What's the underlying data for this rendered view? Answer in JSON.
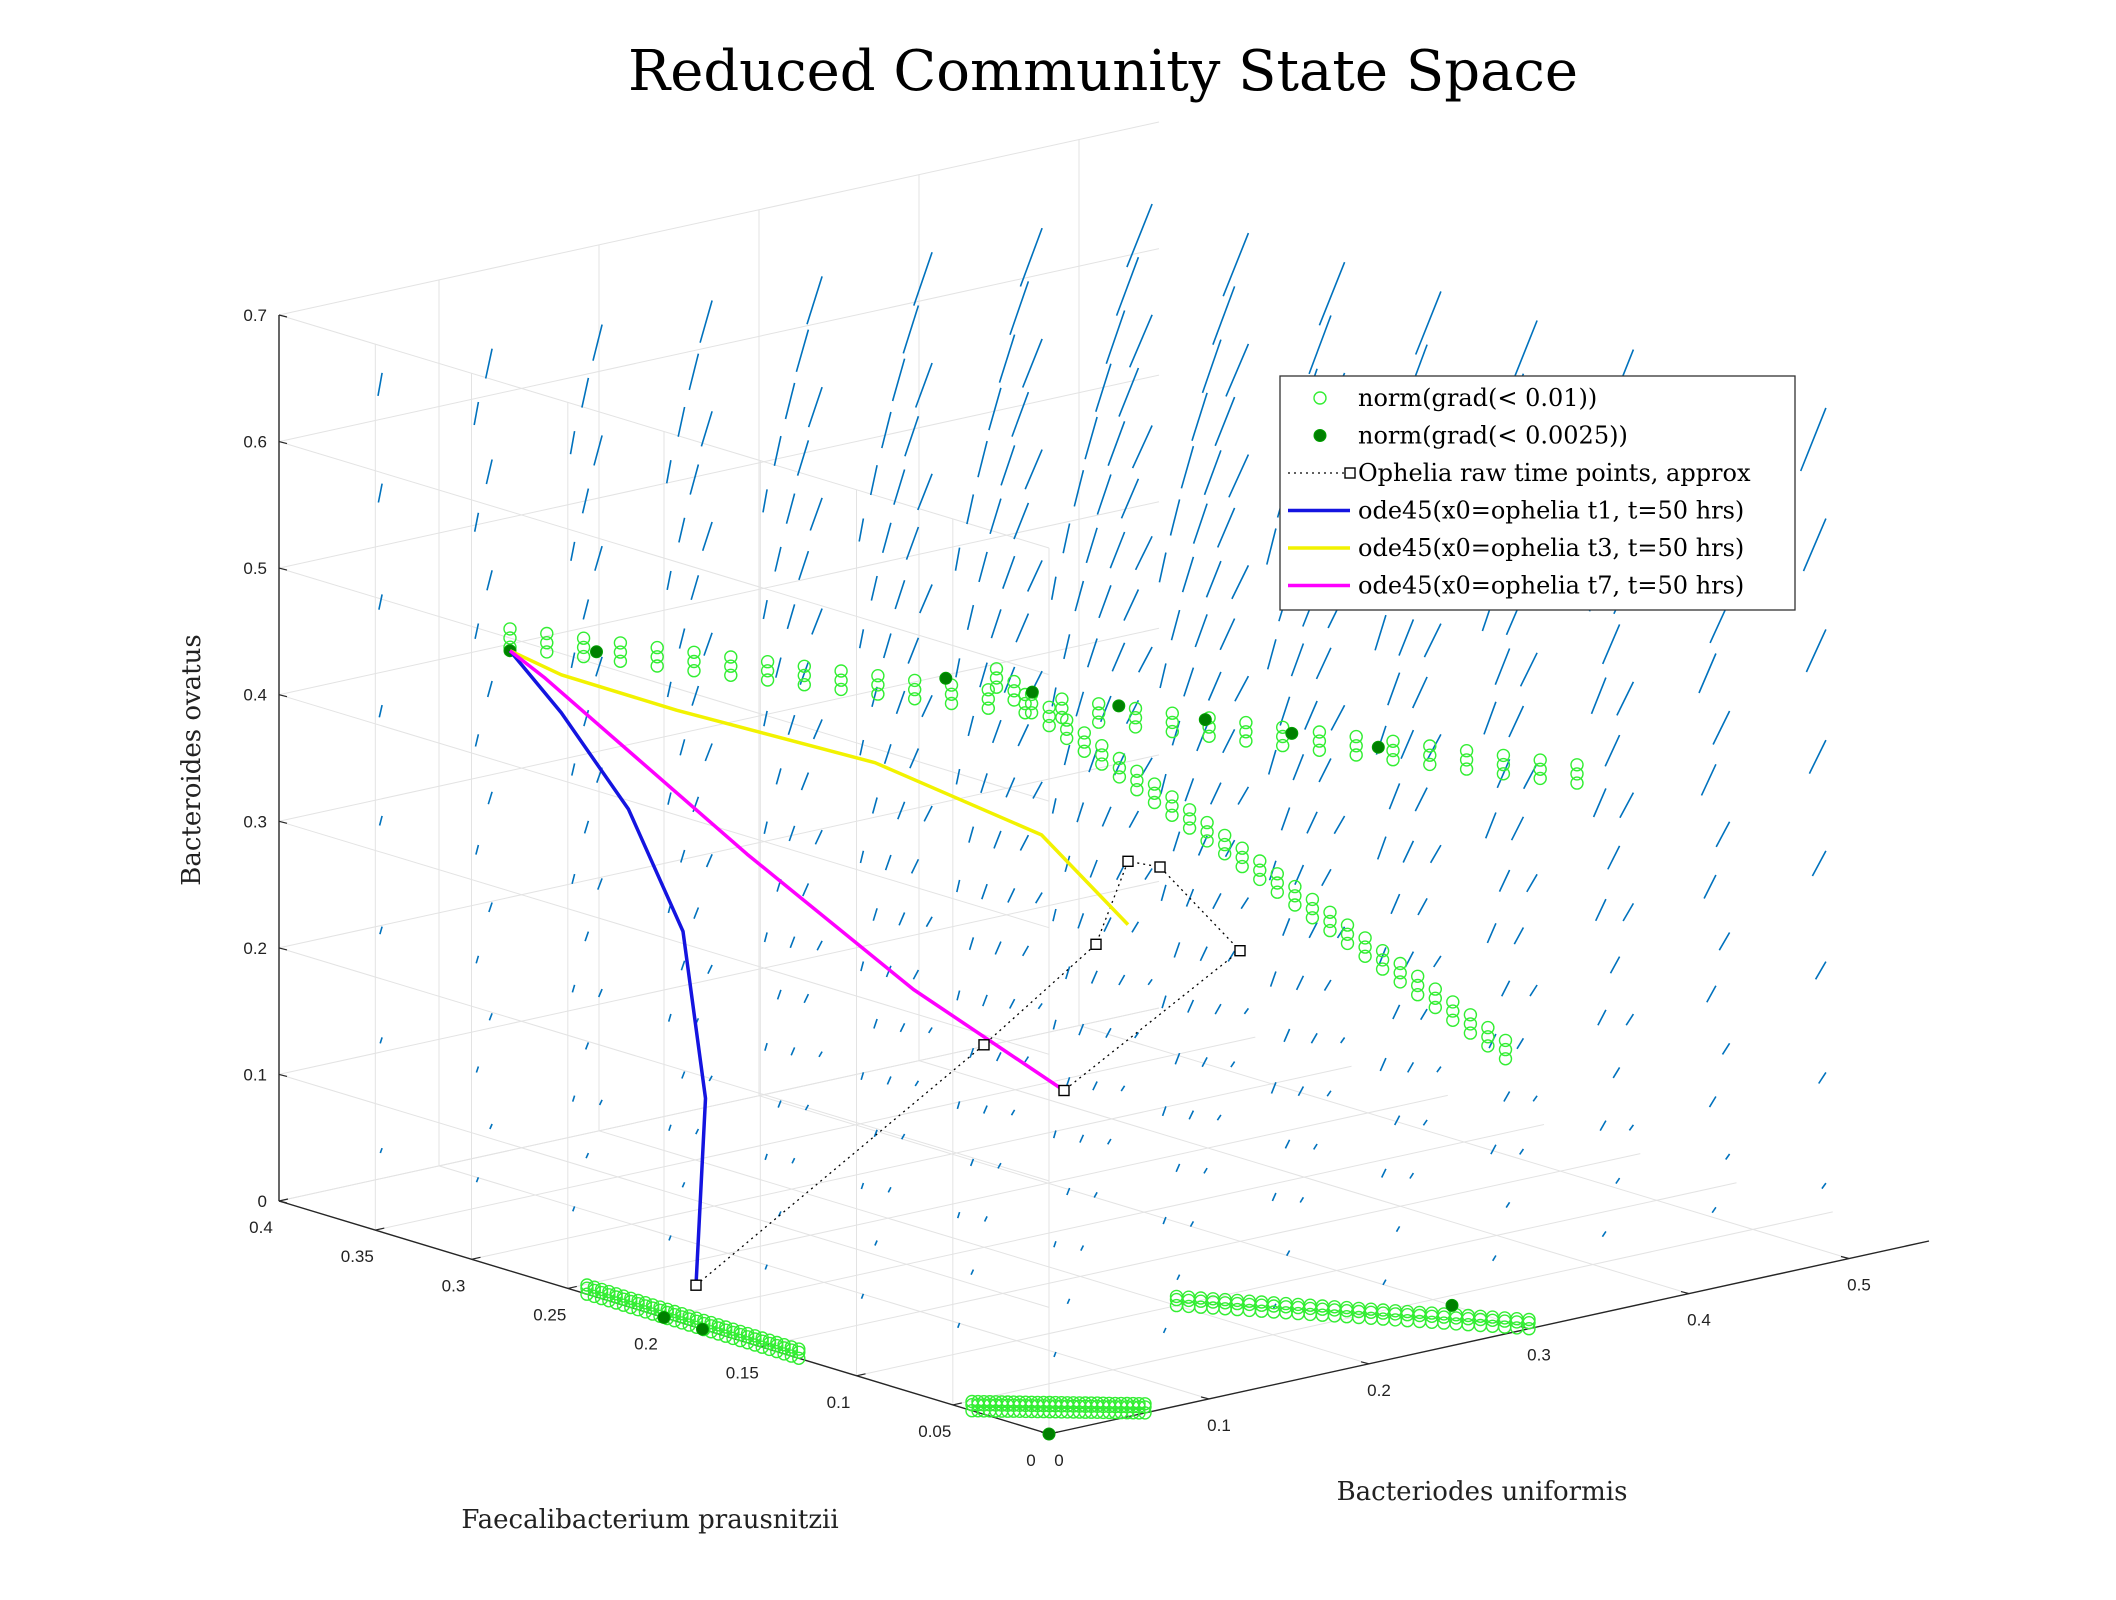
{
  "chart_data": {
    "type": "scatter",
    "title": "Reduced Community State Space",
    "xlabel": "Bacteriodes uniformis",
    "ylabel": "Faecalibacterium prausnitzii",
    "zlabel": "Bacteroides ovatus",
    "xlim": [
      0,
      0.55
    ],
    "ylim": [
      0,
      0.4
    ],
    "zlim": [
      0,
      0.7
    ],
    "xticks": [
      "0",
      "0.1",
      "0.2",
      "0.3",
      "0.4",
      "0.5"
    ],
    "yticks": [
      "0",
      "0.05",
      "0.1",
      "0.15",
      "0.2",
      "0.25",
      "0.3",
      "0.35",
      "0.4"
    ],
    "zticks": [
      "0",
      "0.1",
      "0.2",
      "0.3",
      "0.4",
      "0.5",
      "0.6",
      "0.7"
    ],
    "grid": true,
    "legend_position": "top-right",
    "colors": {
      "quiver": "#0072BD",
      "lowgrad": "#33ee33",
      "verylowgrad": "#008000",
      "t1": "#1414e0",
      "t3": "#f2f200",
      "t7": "#ff00ff",
      "raw": "#000000"
    },
    "series": [
      {
        "name": "norm(grad(< 0.01))",
        "kind": "open-circle",
        "color": "#33ee33",
        "clusters": [
          {
            "x": [
              0.0,
              0.33
            ],
            "y": [
              0.0,
              0.28
            ],
            "z": [
              0.43,
              0.5
            ]
          },
          {
            "x": [
              0.28,
              0.55
            ],
            "y": [
              0.22,
              0.26
            ],
            "z": [
              0.05,
              0.4
            ]
          },
          {
            "x": [
              0.2,
              0.3
            ],
            "y": [
              0.0,
              0.1
            ],
            "z": [
              0.0,
              0.0
            ]
          },
          {
            "x": [
              0.0,
              0.0
            ],
            "y": [
              0.13,
              0.24
            ],
            "z": [
              0.0,
              0.0
            ]
          },
          {
            "x": [
              0.0,
              0.06
            ],
            "y": [
              0.0,
              0.04
            ],
            "z": [
              0.0,
              0.0
            ]
          }
        ]
      },
      {
        "name": "norm(grad(< 0.0025))",
        "kind": "filled-circle",
        "color": "#008000",
        "points": [
          {
            "x": 0.0,
            "y": 0.28,
            "z": 0.49
          },
          {
            "x": 0.03,
            "y": 0.26,
            "z": 0.49
          },
          {
            "x": 0.14,
            "y": 0.17,
            "z": 0.48
          },
          {
            "x": 0.17,
            "y": 0.15,
            "z": 0.47
          },
          {
            "x": 0.2,
            "y": 0.13,
            "z": 0.46
          },
          {
            "x": 0.23,
            "y": 0.11,
            "z": 0.45
          },
          {
            "x": 0.26,
            "y": 0.09,
            "z": 0.44
          },
          {
            "x": 0.29,
            "y": 0.07,
            "z": 0.43
          },
          {
            "x": 0.3,
            "y": 0.04,
            "z": 0.0
          },
          {
            "x": 0.0,
            "y": 0.2,
            "z": 0.0
          },
          {
            "x": 0.0,
            "y": 0.18,
            "z": 0.0
          },
          {
            "x": 0.0,
            "y": 0.0,
            "z": 0.0
          }
        ]
      },
      {
        "name": "Ophelia raw time points, approx",
        "kind": "square-dotted",
        "color": "#000000",
        "points": [
          {
            "x": 0.02,
            "y": 0.2,
            "z": 0.02
          },
          {
            "x": 0.2,
            "y": 0.2,
            "z": 0.16
          },
          {
            "x": 0.27,
            "y": 0.2,
            "z": 0.22
          },
          {
            "x": 0.29,
            "y": 0.2,
            "z": 0.28
          },
          {
            "x": 0.31,
            "y": 0.2,
            "z": 0.27
          },
          {
            "x": 0.36,
            "y": 0.2,
            "z": 0.19
          },
          {
            "x": 0.25,
            "y": 0.2,
            "z": 0.11
          }
        ]
      },
      {
        "name": "ode45(x0=ophelia t1, t=50 hrs)",
        "kind": "line",
        "color": "#1414e0",
        "points": [
          {
            "x": 0.02,
            "y": 0.2,
            "z": 0.02
          },
          {
            "x": 0.05,
            "y": 0.22,
            "z": 0.15
          },
          {
            "x": 0.06,
            "y": 0.24,
            "z": 0.27
          },
          {
            "x": 0.05,
            "y": 0.26,
            "z": 0.36
          },
          {
            "x": 0.02,
            "y": 0.27,
            "z": 0.44
          },
          {
            "x": 0.0,
            "y": 0.28,
            "z": 0.49
          }
        ]
      },
      {
        "name": "ode45(x0=ophelia t3, t=50 hrs)",
        "kind": "line",
        "color": "#f2f200",
        "points": [
          {
            "x": 0.29,
            "y": 0.2,
            "z": 0.23
          },
          {
            "x": 0.26,
            "y": 0.22,
            "z": 0.3
          },
          {
            "x": 0.18,
            "y": 0.24,
            "z": 0.37
          },
          {
            "x": 0.08,
            "y": 0.26,
            "z": 0.43
          },
          {
            "x": 0.02,
            "y": 0.27,
            "z": 0.47
          },
          {
            "x": 0.0,
            "y": 0.28,
            "z": 0.49
          }
        ]
      },
      {
        "name": "ode45(x0=ophelia t7, t=50 hrs)",
        "kind": "line",
        "color": "#ff00ff",
        "points": [
          {
            "x": 0.25,
            "y": 0.2,
            "z": 0.11
          },
          {
            "x": 0.18,
            "y": 0.22,
            "z": 0.2
          },
          {
            "x": 0.1,
            "y": 0.24,
            "z": 0.32
          },
          {
            "x": 0.04,
            "y": 0.26,
            "z": 0.42
          },
          {
            "x": 0.01,
            "y": 0.27,
            "z": 0.47
          },
          {
            "x": 0.0,
            "y": 0.28,
            "z": 0.49
          }
        ]
      }
    ]
  }
}
